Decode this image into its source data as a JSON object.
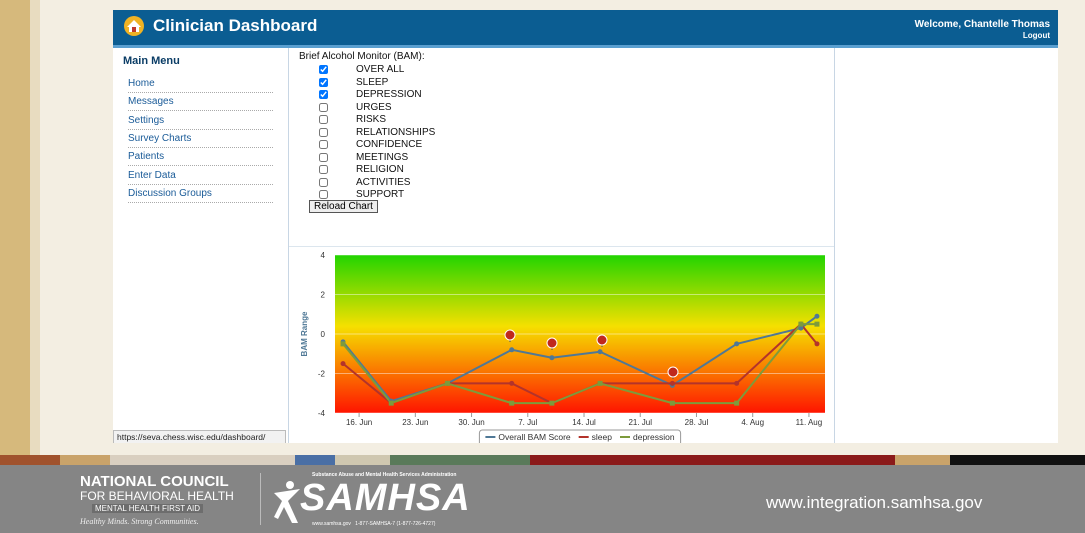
{
  "header": {
    "title": "Clinician Dashboard",
    "welcome": "Welcome, Chantelle Thomas",
    "logout": "Logout"
  },
  "menu": {
    "title": "Main Menu",
    "items": [
      "Home",
      "Messages",
      "Settings",
      "Survey Charts",
      "Patients",
      "Enter Data",
      "Discussion Groups"
    ]
  },
  "form": {
    "label": "Brief Alcohol Monitor (BAM):",
    "options": [
      {
        "label": "OVER ALL",
        "checked": true
      },
      {
        "label": "SLEEP",
        "checked": true
      },
      {
        "label": "DEPRESSION",
        "checked": true
      },
      {
        "label": "URGES",
        "checked": false
      },
      {
        "label": "RISKS",
        "checked": false
      },
      {
        "label": "RELATIONSHIPS",
        "checked": false
      },
      {
        "label": "CONFIDENCE",
        "checked": false
      },
      {
        "label": "MEETINGS",
        "checked": false
      },
      {
        "label": "RELIGION",
        "checked": false
      },
      {
        "label": "ACTIVITIES",
        "checked": false
      },
      {
        "label": "SUPPORT",
        "checked": false
      }
    ],
    "button": "Reload Chart"
  },
  "chart_data": {
    "type": "line",
    "y_label": "BAM Range",
    "x": [
      "06-14",
      "06-20",
      "06-27",
      "07-05",
      "07-10",
      "07-16",
      "07-25",
      "08-02",
      "08-10",
      "08-12"
    ],
    "xlim": [
      "06-13",
      "08-13"
    ],
    "xticks": [
      {
        "value": "06-16",
        "label": "16. Jun"
      },
      {
        "value": "06-23",
        "label": "23. Jun"
      },
      {
        "value": "06-30",
        "label": "30. Jun"
      },
      {
        "value": "07-07",
        "label": "7. Jul"
      },
      {
        "value": "07-14",
        "label": "14. Jul"
      },
      {
        "value": "07-21",
        "label": "21. Jul"
      },
      {
        "value": "07-28",
        "label": "28. Jul"
      },
      {
        "value": "08-04",
        "label": "4. Aug"
      },
      {
        "value": "08-11",
        "label": "11. Aug"
      }
    ],
    "ylim": [
      -4,
      4
    ],
    "yticks": [
      -4,
      -2,
      0,
      2,
      4
    ],
    "grid": true,
    "legend": "bottom",
    "series": [
      {
        "name": "Overall BAM Score",
        "color": "#4f7896",
        "values": [
          -0.4,
          -3.4,
          -2.5,
          -0.8,
          -1.2,
          -0.9,
          -2.6,
          -0.5,
          0.3,
          0.9
        ]
      },
      {
        "name": "sleep",
        "color": "#b3332b",
        "values": [
          -1.5,
          -3.5,
          -2.5,
          -2.5,
          -3.5,
          -2.5,
          -2.5,
          -2.5,
          0.5,
          -0.5
        ]
      },
      {
        "name": "depression",
        "color": "#7d9b3c",
        "values": [
          -0.5,
          -3.5,
          -2.5,
          -3.5,
          -3.5,
          -2.5,
          -3.5,
          -3.5,
          0.5,
          0.5
        ]
      }
    ]
  },
  "status_url": "https://seva.chess.wisc.edu/dashboard/",
  "footer": {
    "nc_line1": "NATIONAL COUNCIL",
    "nc_line2": "FOR BEHAVIORAL HEALTH",
    "nc_line3": "MENTAL HEALTH FIRST AID",
    "nc_tagline": "Healthy Minds. Strong Communities.",
    "samhsa_top": "Substance Abuse and Mental Health Services Administration",
    "samhsa": "SAMHSA",
    "samhsa_bottom": "www.samhsa.gov   1-877-SAMHSA-7 (1-877-726-4727)",
    "site": "www.integration.samhsa.gov"
  }
}
